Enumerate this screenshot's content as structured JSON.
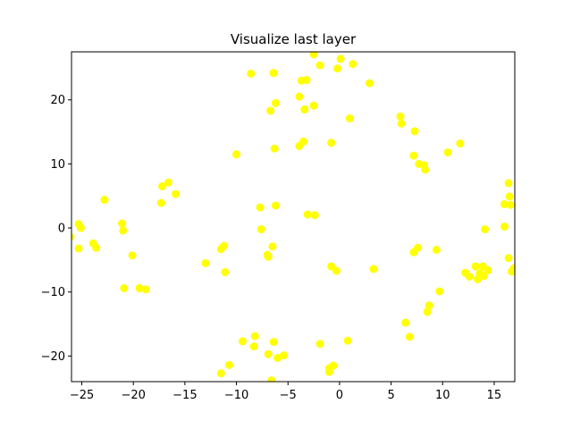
{
  "chart_data": {
    "type": "scatter",
    "title": "Visualize last layer",
    "xlabel": "",
    "ylabel": "",
    "xlim": [
      -26,
      17
    ],
    "ylim": [
      -24,
      27.5
    ],
    "xticks": [
      -25,
      -20,
      -15,
      -10,
      -5,
      0,
      5,
      10,
      15
    ],
    "yticks": [
      -20,
      -10,
      0,
      10,
      20
    ],
    "grid": false,
    "marker_color": "#ffff00",
    "points": [
      [
        -25.3,
        0.6
      ],
      [
        -25.1,
        0.0
      ],
      [
        -25.3,
        -3.2
      ],
      [
        -23.9,
        -2.4
      ],
      [
        -23.6,
        -3.1
      ],
      [
        -22.8,
        4.4
      ],
      [
        -26.1,
        -1.4
      ],
      [
        -21.1,
        0.7
      ],
      [
        -21.0,
        -0.4
      ],
      [
        -20.1,
        -4.3
      ],
      [
        -20.9,
        -9.4
      ],
      [
        -19.4,
        -9.4
      ],
      [
        -18.8,
        -9.6
      ],
      [
        -17.2,
        6.5
      ],
      [
        -16.6,
        7.1
      ],
      [
        -17.3,
        3.9
      ],
      [
        -15.9,
        5.3
      ],
      [
        -13.0,
        -5.5
      ],
      [
        -11.5,
        -3.3
      ],
      [
        -11.2,
        -2.8
      ],
      [
        -11.1,
        -6.9
      ],
      [
        -10.0,
        11.5
      ],
      [
        -11.5,
        -22.7
      ],
      [
        -10.7,
        -21.4
      ],
      [
        -9.4,
        -17.7
      ],
      [
        -8.2,
        -16.9
      ],
      [
        -8.3,
        -18.5
      ],
      [
        -8.6,
        24.1
      ],
      [
        -7.7,
        3.2
      ],
      [
        -7.6,
        -0.2
      ],
      [
        -7.0,
        -4.2
      ],
      [
        -6.9,
        -4.5
      ],
      [
        -6.5,
        -2.9
      ],
      [
        -6.2,
        3.5
      ],
      [
        -6.3,
        12.4
      ],
      [
        -6.2,
        19.5
      ],
      [
        -6.7,
        18.3
      ],
      [
        -6.4,
        24.2
      ],
      [
        -6.9,
        -19.7
      ],
      [
        -6.6,
        -23.8
      ],
      [
        -6.4,
        -17.8
      ],
      [
        -6.0,
        -20.3
      ],
      [
        -5.4,
        -19.9
      ],
      [
        -3.9,
        20.5
      ],
      [
        -3.7,
        23.0
      ],
      [
        -3.2,
        23.1
      ],
      [
        -3.4,
        18.5
      ],
      [
        -2.5,
        19.1
      ],
      [
        -3.9,
        12.8
      ],
      [
        -3.5,
        13.5
      ],
      [
        -3.1,
        2.1
      ],
      [
        -2.4,
        2.0
      ],
      [
        -2.5,
        27.1
      ],
      [
        -1.9,
        25.4
      ],
      [
        -1.9,
        -18.1
      ],
      [
        -0.8,
        13.3
      ],
      [
        -0.2,
        24.9
      ],
      [
        0.1,
        26.4
      ],
      [
        1.3,
        25.6
      ],
      [
        1.0,
        17.1
      ],
      [
        -0.8,
        -6.0
      ],
      [
        -0.3,
        -6.7
      ],
      [
        -1.0,
        -21.9
      ],
      [
        -0.6,
        -21.5
      ],
      [
        -1.0,
        -22.5
      ],
      [
        0.8,
        -17.6
      ],
      [
        2.9,
        22.6
      ],
      [
        3.3,
        -6.4
      ],
      [
        5.9,
        17.4
      ],
      [
        6.0,
        16.3
      ],
      [
        7.3,
        15.1
      ],
      [
        7.2,
        11.3
      ],
      [
        7.7,
        10.0
      ],
      [
        8.2,
        9.8
      ],
      [
        8.3,
        9.1
      ],
      [
        7.2,
        -3.8
      ],
      [
        7.6,
        -3.1
      ],
      [
        6.4,
        -14.8
      ],
      [
        6.8,
        -17.0
      ],
      [
        9.4,
        -3.4
      ],
      [
        8.5,
        -13.1
      ],
      [
        8.7,
        -12.1
      ],
      [
        9.7,
        -9.9
      ],
      [
        10.5,
        11.8
      ],
      [
        11.7,
        13.2
      ],
      [
        12.2,
        -7.0
      ],
      [
        12.6,
        -7.6
      ],
      [
        13.2,
        -6.0
      ],
      [
        13.6,
        -7.1
      ],
      [
        13.4,
        -8.0
      ],
      [
        14.0,
        -7.5
      ],
      [
        13.9,
        -6.0
      ],
      [
        14.4,
        -6.6
      ],
      [
        14.1,
        -0.2
      ],
      [
        16.0,
        3.7
      ],
      [
        16.0,
        0.2
      ],
      [
        16.4,
        7.0
      ],
      [
        16.5,
        4.9
      ],
      [
        16.6,
        3.6
      ],
      [
        16.4,
        -4.7
      ],
      [
        16.7,
        -6.8
      ],
      [
        16.9,
        -6.3
      ]
    ]
  }
}
